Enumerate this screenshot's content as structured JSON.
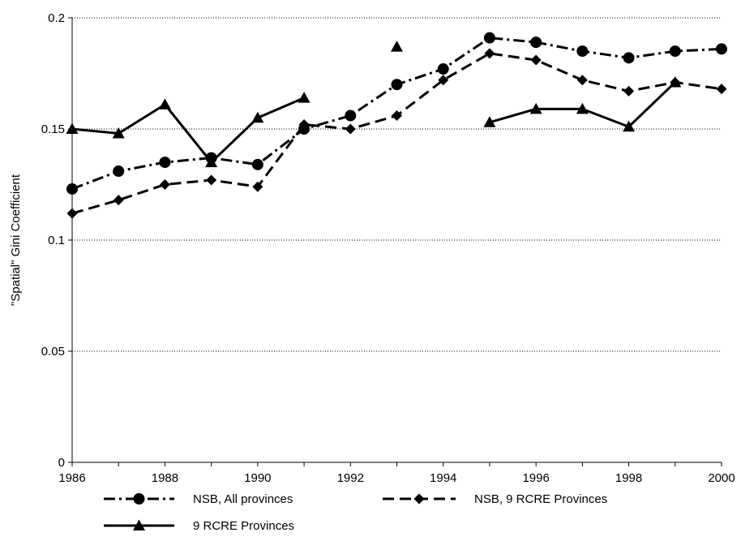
{
  "chart_data": {
    "type": "line",
    "title": "",
    "xlabel": "",
    "ylabel": "\"Spatial\" Gini Coefficient",
    "xlim": [
      1986,
      2000
    ],
    "ylim": [
      0,
      0.2
    ],
    "x_ticks": [
      1986,
      1988,
      1990,
      1992,
      1994,
      1996,
      1998,
      2000
    ],
    "y_ticks": [
      0,
      0.05,
      0.1,
      0.15,
      0.2
    ],
    "y_tick_labels": [
      "0",
      "0.05",
      "0.1",
      "0.15",
      "0.2"
    ],
    "grid": "horizontal dotted",
    "legend_position": "bottom",
    "series": [
      {
        "name": "NSB, All provinces",
        "marker": "circle",
        "line_style": "dash-dot",
        "color": "#000000",
        "x": [
          1986,
          1987,
          1988,
          1989,
          1990,
          1991,
          1992,
          1993,
          1994,
          1995,
          1996,
          1997,
          1998,
          1999,
          2000
        ],
        "values": [
          0.123,
          0.131,
          0.135,
          0.137,
          0.134,
          0.15,
          0.156,
          0.17,
          0.177,
          0.191,
          0.189,
          0.185,
          0.182,
          0.185,
          0.186
        ]
      },
      {
        "name": "NSB, 9 RCRE Provinces",
        "marker": "diamond",
        "line_style": "dashed",
        "color": "#000000",
        "x": [
          1986,
          1987,
          1988,
          1989,
          1990,
          1991,
          1992,
          1993,
          1994,
          1995,
          1996,
          1997,
          1998,
          1999,
          2000
        ],
        "values": [
          0.112,
          0.118,
          0.125,
          0.127,
          0.124,
          0.152,
          0.15,
          0.156,
          0.172,
          0.184,
          0.181,
          0.172,
          0.167,
          0.171,
          0.168
        ]
      },
      {
        "name": "9 RCRE Provinces",
        "marker": "triangle",
        "line_style": "solid",
        "color": "#000000",
        "x": [
          1986,
          1987,
          1988,
          1989,
          1990,
          1991,
          1993,
          1995,
          1996,
          1997,
          1998,
          1999
        ],
        "values": [
          0.15,
          0.148,
          0.161,
          0.135,
          0.155,
          0.164,
          0.187,
          0.153,
          0.159,
          0.159,
          0.151,
          0.171
        ],
        "segments": [
          [
            0,
            5
          ],
          [
            6,
            6
          ],
          [
            7,
            11
          ]
        ]
      }
    ]
  }
}
